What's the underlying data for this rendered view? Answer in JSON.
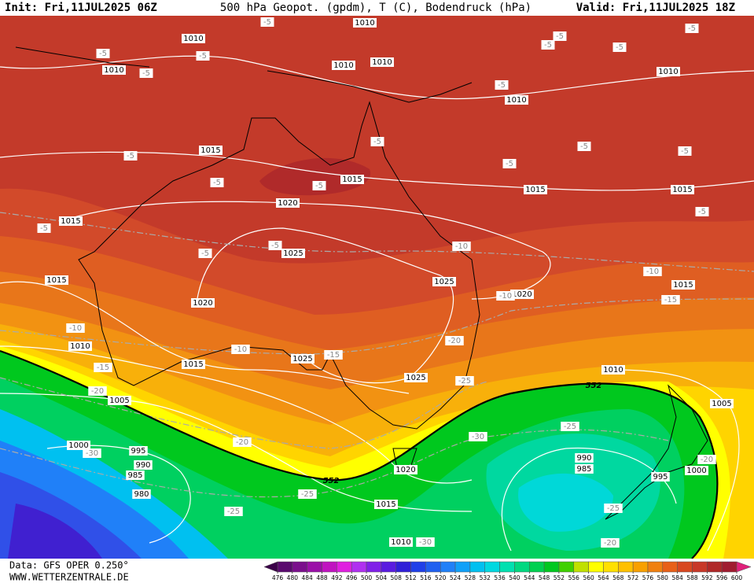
{
  "header": {
    "init": "Init: Fri,11JUL2025 06Z",
    "title": "500 hPa Geopot. (gpdm), T (C), Bodendruck (hPa)",
    "valid": "Valid: Fri,11JUL2025 18Z"
  },
  "footer": {
    "source": "Data: GFS OPER 0.250°",
    "site": "WWW.WETTERZENTRALE.DE"
  },
  "map": {
    "pressure_labels": [
      1010,
      1010,
      1010,
      1010,
      1010,
      1010,
      1010,
      1015,
      1015,
      1015,
      1015,
      1015,
      1020,
      1025,
      1025,
      1015,
      1020,
      1020,
      1015,
      1010,
      1015,
      1025,
      1025,
      1010,
      1005,
      1005,
      1000,
      995,
      990,
      985,
      980,
      990,
      985,
      1020,
      995,
      1000,
      1015,
      1010
    ],
    "temperature_labels": [
      -5,
      -5,
      -5,
      -5,
      -5,
      -5,
      -5,
      -5,
      -5,
      -5,
      -5,
      -5,
      -5,
      -5,
      -5,
      -5,
      -5,
      -5,
      -5,
      -5,
      -10,
      -10,
      -10,
      -15,
      -10,
      -10,
      -15,
      -20,
      -15,
      -20,
      -25,
      -20,
      -30,
      -30,
      -25,
      -20,
      -25,
      -25,
      -25,
      -30,
      -20
    ],
    "geopotential_labels": [
      552,
      552
    ]
  },
  "colorbar": {
    "ticks": [
      476,
      480,
      484,
      488,
      492,
      496,
      500,
      504,
      508,
      512,
      516,
      520,
      524,
      528,
      532,
      536,
      540,
      544,
      548,
      552,
      556,
      560,
      564,
      568,
      572,
      576,
      580,
      584,
      588,
      592,
      596,
      600
    ],
    "colors": [
      "#5a0a6e",
      "#7a0f8c",
      "#9a10a8",
      "#c014c0",
      "#e020e0",
      "#b030f0",
      "#8020e8",
      "#5a1ce0",
      "#3020d8",
      "#2040e8",
      "#2060f0",
      "#2080f8",
      "#10a0f8",
      "#00c0f0",
      "#00d8e0",
      "#00e0b0",
      "#00d880",
      "#00d050",
      "#00c820",
      "#40d000",
      "#c0e000",
      "#ffff00",
      "#ffe000",
      "#ffc000",
      "#f8a000",
      "#f08010",
      "#e86018",
      "#d84820",
      "#c83828",
      "#b02828",
      "#a01c30"
    ]
  }
}
